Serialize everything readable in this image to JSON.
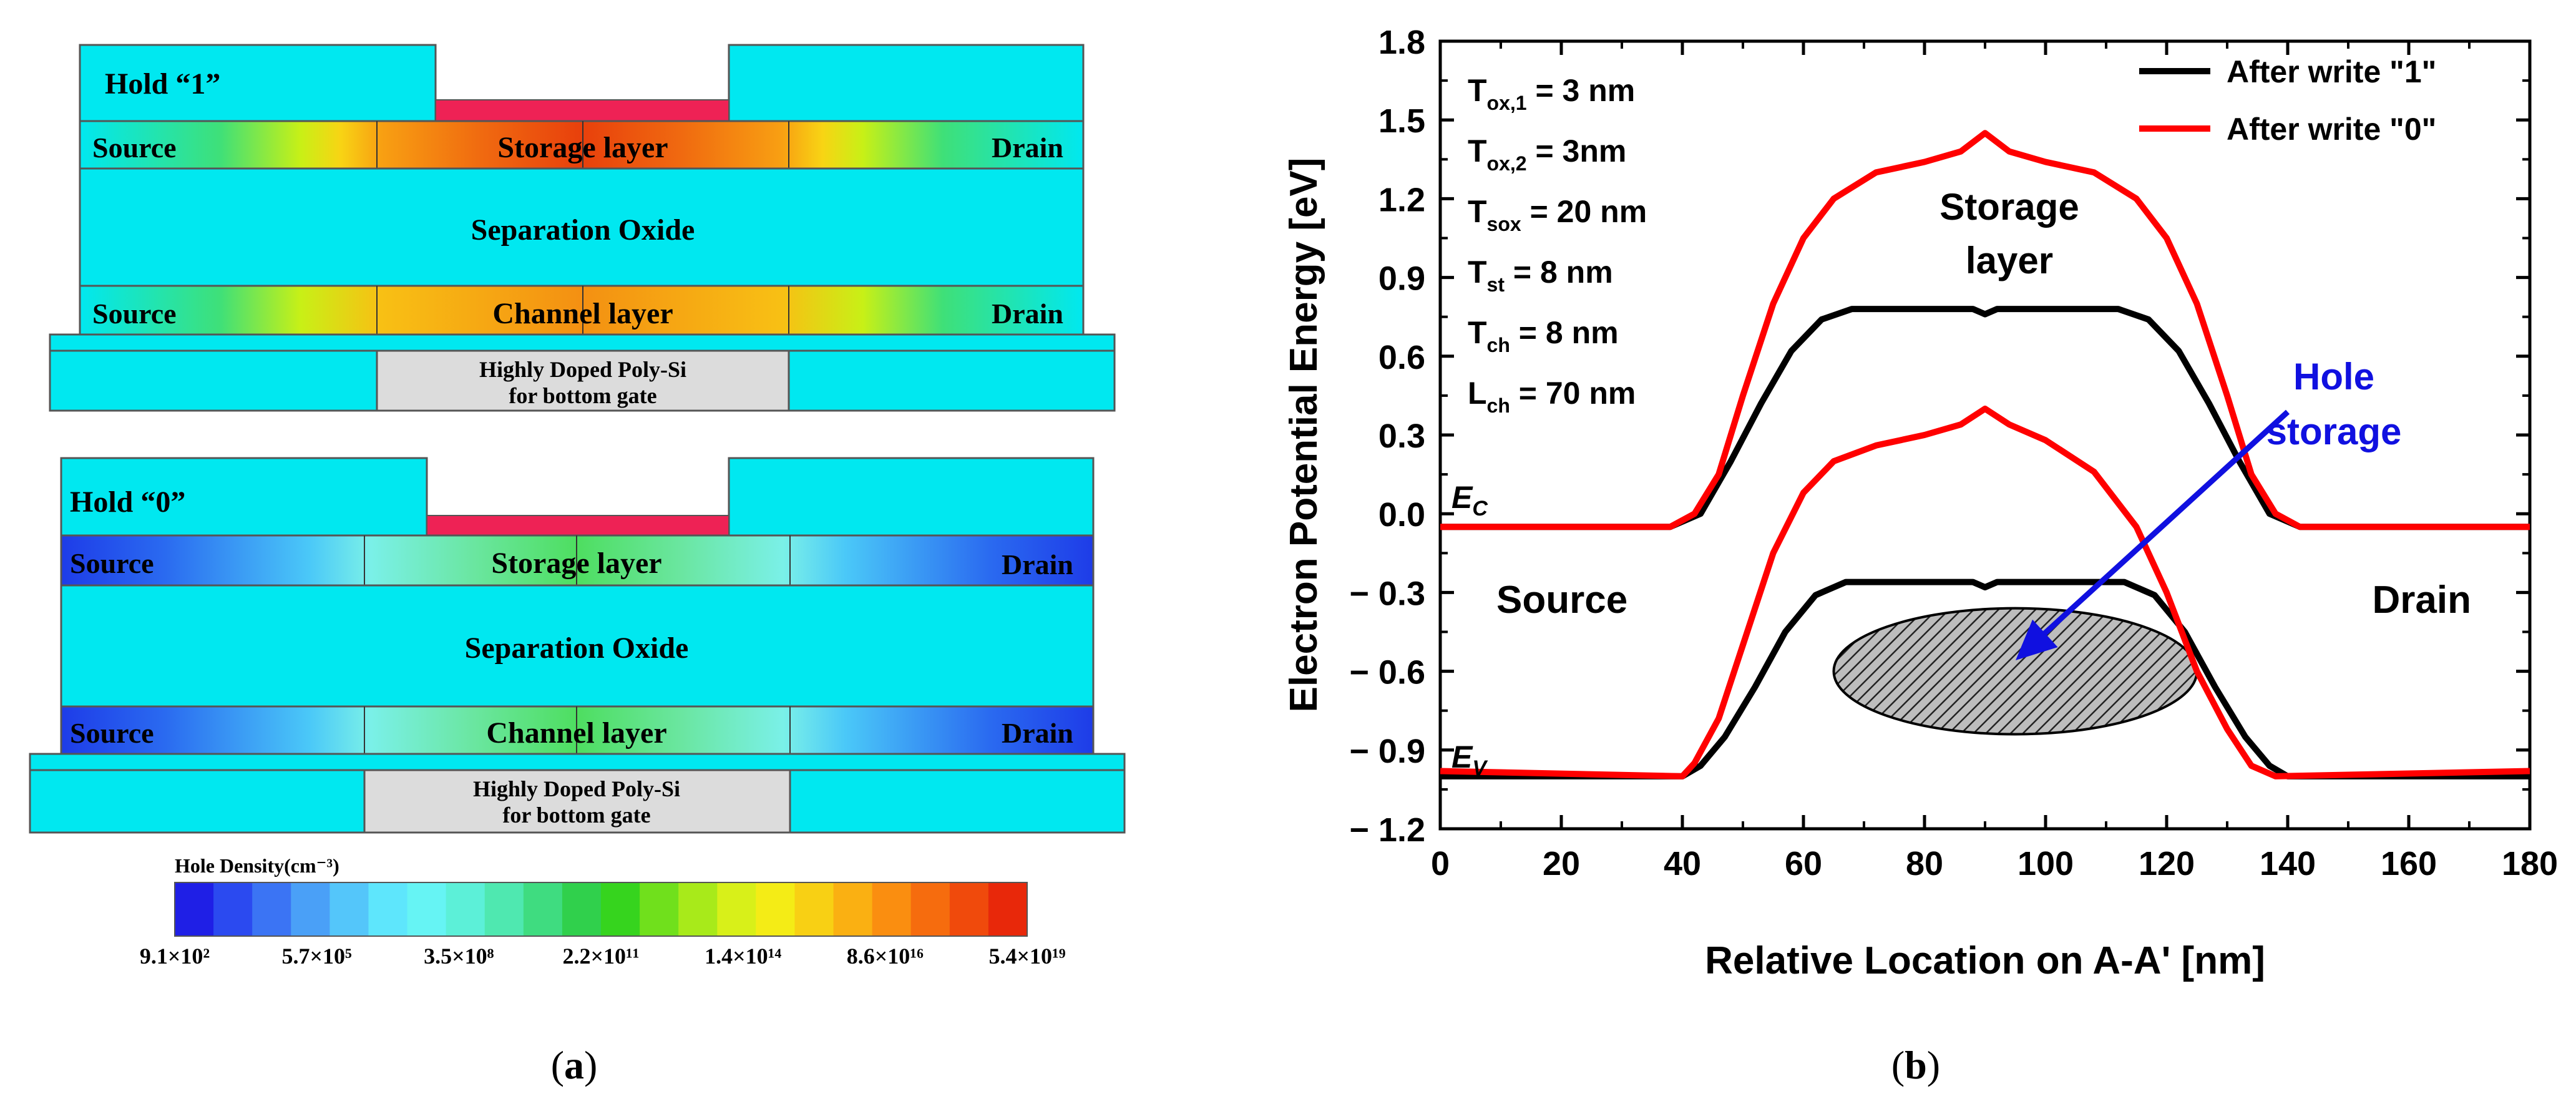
{
  "panel_a": {
    "label": "(a)",
    "letter": "a",
    "hold1": {
      "title": "Hold “1”",
      "source_top": "Source",
      "drain_top": "Drain",
      "storage": "Storage layer",
      "separation": "Separation Oxide",
      "source_bottom": "Source",
      "drain_bottom": "Drain",
      "channel": "Channel layer",
      "gate_line1": "Highly Doped Poly-Si",
      "gate_line2": "for bottom gate"
    },
    "hold0": {
      "title": "Hold “0”",
      "source_top": "Source",
      "drain_top": "Drain",
      "storage": "Storage layer",
      "separation": "Separation Oxide",
      "source_bottom": "Source",
      "drain_bottom": "Drain",
      "channel": "Channel layer",
      "gate_line1": "Highly Doped Poly-Si",
      "gate_line2": "for bottom gate"
    },
    "colorbar": {
      "title": "Hole Density(cm⁻³)",
      "ticks": [
        "9.1×10²",
        "5.7×10⁵",
        "3.5×10⁸",
        "2.2×10¹¹",
        "1.4×10¹⁴",
        "8.6×10¹⁶",
        "5.4×10¹⁹"
      ],
      "colors": [
        "#1f1fe6",
        "#2b4af0",
        "#3b74f4",
        "#4aa0f7",
        "#54c6fa",
        "#5ee6fc",
        "#66f4f4",
        "#5cf0d8",
        "#4fe8b0",
        "#3fdc80",
        "#30d04c",
        "#36d41e",
        "#70e01c",
        "#a8ea1a",
        "#d8f019",
        "#f4ec16",
        "#f8d014",
        "#fab012",
        "#fa8e10",
        "#f66c0e",
        "#f04a0c",
        "#e8280a"
      ]
    }
  },
  "panel_b": {
    "label": "(b)",
    "letter": "b",
    "chart_data": {
      "type": "line",
      "title": "",
      "xlabel": "Relative Location on A-A' [nm]",
      "ylabel": "Electron Potential Energy [eV]",
      "xlim": [
        0,
        180
      ],
      "ylim": [
        -1.2,
        1.8
      ],
      "xticks": [
        0,
        20,
        40,
        60,
        80,
        100,
        120,
        140,
        160,
        180
      ],
      "yticks": [
        -1.2,
        -0.9,
        -0.6,
        -0.3,
        0.0,
        0.3,
        0.6,
        0.9,
        1.2,
        1.5,
        1.8
      ],
      "ytick_labels": [
        "− 1.2",
        "− 0.9",
        "− 0.6",
        "− 0.3",
        "0.0",
        "0.3",
        "0.6",
        "0.9",
        "1.2",
        "1.5",
        "1.8"
      ],
      "legend_position": "top-right",
      "series": [
        {
          "name": "After write \"1\"",
          "color": "#000000",
          "ec": [
            [
              0,
              -0.05
            ],
            [
              38,
              -0.05
            ],
            [
              43,
              0.0
            ],
            [
              48,
              0.2
            ],
            [
              53,
              0.42
            ],
            [
              58,
              0.62
            ],
            [
              63,
              0.74
            ],
            [
              68,
              0.78
            ],
            [
              88,
              0.78
            ],
            [
              90,
              0.76
            ],
            [
              92,
              0.78
            ],
            [
              112,
              0.78
            ],
            [
              117,
              0.74
            ],
            [
              122,
              0.62
            ],
            [
              127,
              0.42
            ],
            [
              132,
              0.2
            ],
            [
              137,
              0.0
            ],
            [
              142,
              -0.05
            ],
            [
              180,
              -0.05
            ]
          ],
          "ev": [
            [
              0,
              -1.0
            ],
            [
              40,
              -1.0
            ],
            [
              43,
              -0.96
            ],
            [
              47,
              -0.85
            ],
            [
              52,
              -0.66
            ],
            [
              57,
              -0.45
            ],
            [
              62,
              -0.31
            ],
            [
              67,
              -0.26
            ],
            [
              88,
              -0.26
            ],
            [
              90,
              -0.28
            ],
            [
              92,
              -0.26
            ],
            [
              113,
              -0.26
            ],
            [
              118,
              -0.31
            ],
            [
              123,
              -0.45
            ],
            [
              128,
              -0.66
            ],
            [
              133,
              -0.85
            ],
            [
              137,
              -0.96
            ],
            [
              140,
              -1.0
            ],
            [
              180,
              -1.0
            ]
          ]
        },
        {
          "name": "After write \"0\"",
          "color": "#ff0000",
          "ec": [
            [
              0,
              -0.05
            ],
            [
              38,
              -0.05
            ],
            [
              42,
              0.0
            ],
            [
              46,
              0.15
            ],
            [
              50,
              0.45
            ],
            [
              55,
              0.8
            ],
            [
              60,
              1.05
            ],
            [
              65,
              1.2
            ],
            [
              72,
              1.3
            ],
            [
              80,
              1.34
            ],
            [
              86,
              1.38
            ],
            [
              90,
              1.45
            ],
            [
              94,
              1.38
            ],
            [
              100,
              1.34
            ],
            [
              108,
              1.3
            ],
            [
              115,
              1.2
            ],
            [
              120,
              1.05
            ],
            [
              125,
              0.8
            ],
            [
              130,
              0.45
            ],
            [
              134,
              0.15
            ],
            [
              138,
              0.0
            ],
            [
              142,
              -0.05
            ],
            [
              180,
              -0.05
            ]
          ],
          "ev": [
            [
              0,
              -0.98
            ],
            [
              40,
              -1.0
            ],
            [
              42,
              -0.95
            ],
            [
              46,
              -0.78
            ],
            [
              50,
              -0.5
            ],
            [
              55,
              -0.15
            ],
            [
              60,
              0.08
            ],
            [
              65,
              0.2
            ],
            [
              72,
              0.26
            ],
            [
              80,
              0.3
            ],
            [
              86,
              0.34
            ],
            [
              90,
              0.4
            ],
            [
              94,
              0.34
            ],
            [
              100,
              0.28
            ],
            [
              108,
              0.16
            ],
            [
              115,
              -0.05
            ],
            [
              120,
              -0.3
            ],
            [
              125,
              -0.6
            ],
            [
              130,
              -0.82
            ],
            [
              134,
              -0.96
            ],
            [
              138,
              -1.0
            ],
            [
              180,
              -0.98
            ]
          ]
        }
      ],
      "annotations": {
        "params": [
          {
            "sym": "T",
            "sub": "ox,1",
            "val": " = 3 nm"
          },
          {
            "sym": "T",
            "sub": "ox,2",
            "val": " = 3nm"
          },
          {
            "sym": "T",
            "sub": "sox",
            "val": " = 20 nm"
          },
          {
            "sym": "T",
            "sub": "st",
            "val": " = 8 nm"
          },
          {
            "sym": "T",
            "sub": "ch",
            "val": " = 8 nm"
          },
          {
            "sym": "L",
            "sub": "ch",
            "val": " = 70 nm"
          }
        ],
        "storage_line1": "Storage",
        "storage_line2": "layer",
        "hole_line1": "Hole",
        "hole_line2": "storage",
        "source": "Source",
        "drain": "Drain",
        "ec_sym": "E",
        "ec_sub": "C",
        "ev_sym": "E",
        "ev_sub": "V"
      },
      "hole_region": {
        "cx": 95,
        "cy": -0.6,
        "rx": 30,
        "ry": 0.24
      }
    }
  }
}
